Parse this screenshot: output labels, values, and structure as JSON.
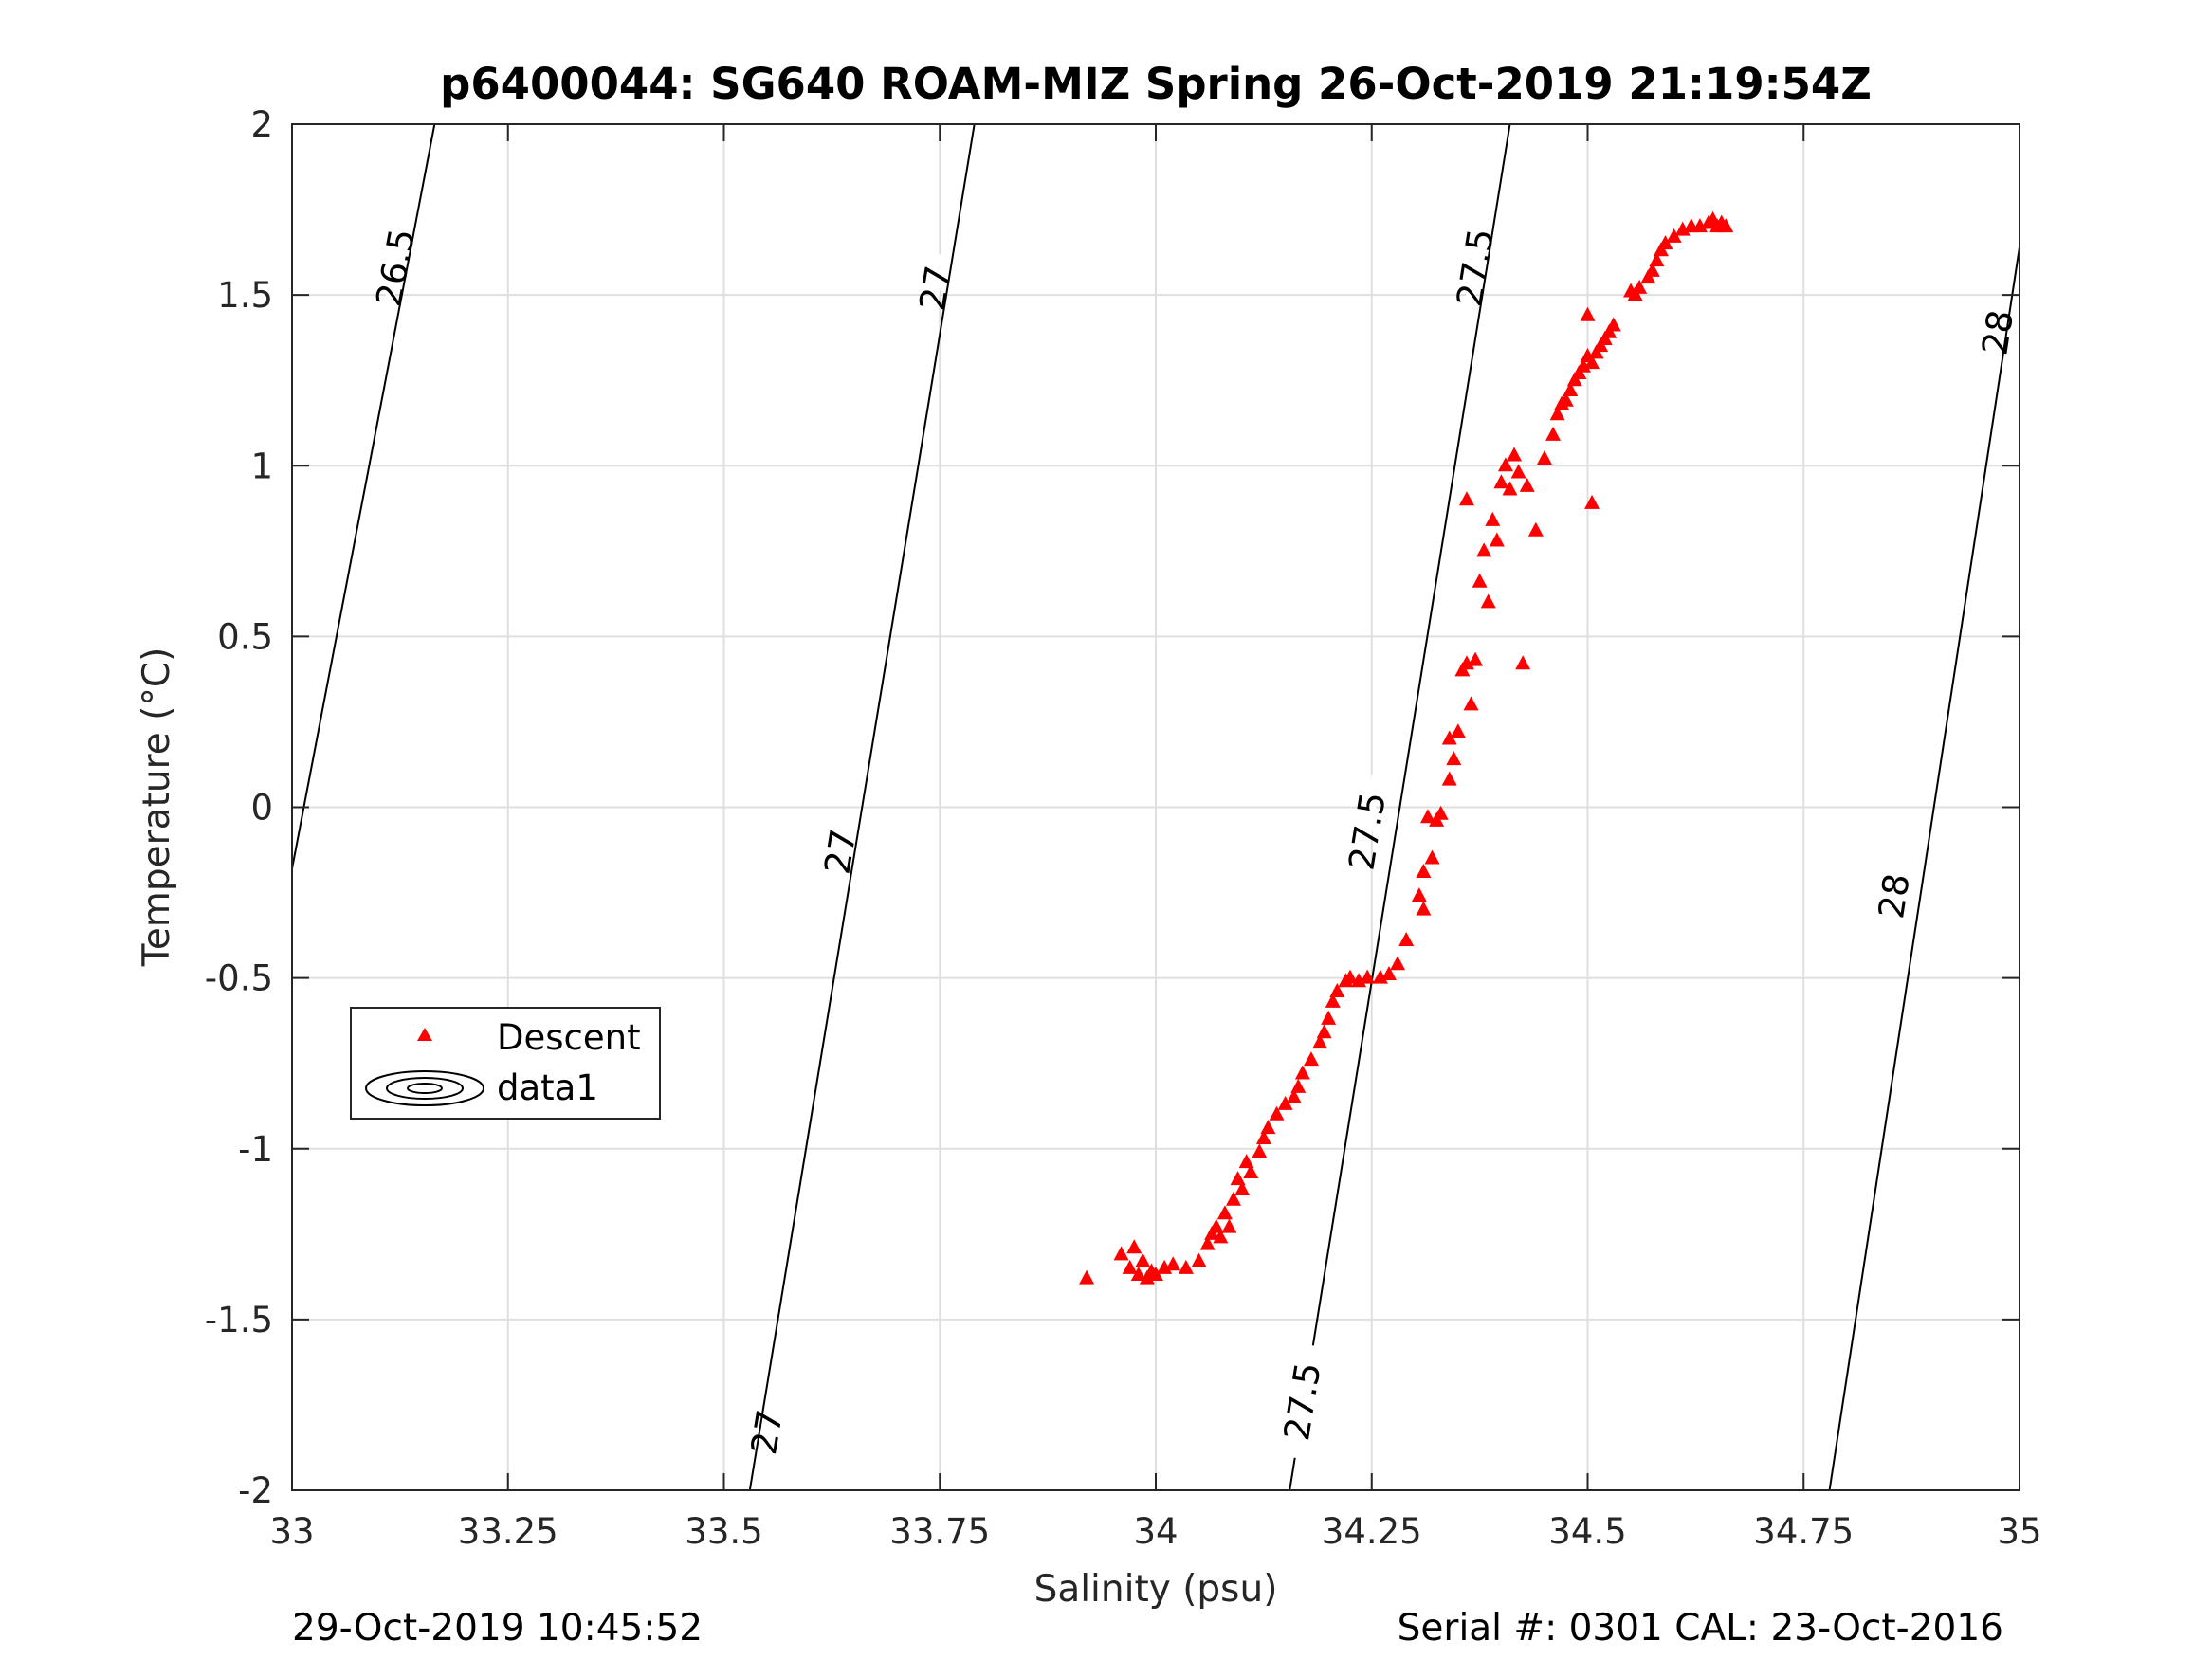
{
  "chart_data": {
    "type": "scatter",
    "title": "p6400044: SG640 ROAM-MIZ Spring 26-Oct-2019 21:19:54Z",
    "xlabel": "Salinity (psu)",
    "ylabel": "Temperature (°C)",
    "xlim": [
      33,
      35
    ],
    "ylim": [
      -2,
      2
    ],
    "xticks": [
      33,
      33.25,
      33.5,
      33.75,
      34,
      34.25,
      34.5,
      34.75,
      35
    ],
    "xtick_labels": [
      "33",
      "33.25",
      "33.5",
      "33.75",
      "34",
      "34.25",
      "34.5",
      "34.75",
      "35"
    ],
    "yticks": [
      -2,
      -1.5,
      -1,
      -0.5,
      0,
      0.5,
      1,
      1.5,
      2
    ],
    "ytick_labels": [
      "-2",
      "-1.5",
      "-1",
      "-0.5",
      "0",
      "0.5",
      "1",
      "1.5",
      "2"
    ],
    "grid": true,
    "legend_position": "middle-left",
    "footer_left": "29-Oct-2019 10:45:52",
    "footer_right": "Serial #: 0301  CAL: 23-Oct-2016",
    "colors": {
      "descent": "#ff0000",
      "contour": "#000000",
      "grid": "#dfdfdf"
    },
    "series": [
      {
        "name": "Descent",
        "marker": "triangle",
        "x": [
          33.92,
          33.96,
          33.97,
          33.975,
          33.98,
          33.985,
          33.99,
          33.995,
          34.0,
          34.01,
          34.02,
          34.035,
          34.05,
          34.06,
          34.07,
          34.065,
          34.075,
          34.08,
          34.085,
          34.09,
          34.1,
          34.095,
          34.11,
          34.105,
          34.12,
          34.125,
          34.13,
          34.14,
          34.15,
          34.16,
          34.165,
          34.17,
          34.18,
          34.19,
          34.195,
          34.2,
          34.205,
          34.21,
          34.22,
          34.225,
          34.235,
          34.245,
          34.26,
          34.27,
          34.28,
          34.29,
          34.31,
          34.305,
          34.32,
          34.31,
          34.325,
          34.33,
          34.315,
          34.34,
          34.345,
          34.34,
          34.35,
          34.355,
          34.36,
          34.365,
          34.37,
          34.36,
          34.385,
          34.375,
          34.38,
          34.395,
          34.39,
          34.4,
          34.405,
          34.41,
          34.415,
          34.42,
          34.425,
          34.43,
          34.44,
          34.45,
          34.46,
          34.465,
          34.47,
          34.475,
          34.48,
          34.485,
          34.49,
          34.495,
          34.5,
          34.505,
          34.51,
          34.515,
          34.52,
          34.525,
          34.53,
          34.5,
          34.505,
          34.55,
          34.555,
          34.56,
          34.57,
          34.575,
          34.58,
          34.585,
          34.59,
          34.6,
          34.61,
          34.62,
          34.63,
          34.64,
          34.645,
          34.65,
          34.655,
          34.66
        ],
        "y": [
          -1.38,
          -1.31,
          -1.35,
          -1.29,
          -1.37,
          -1.33,
          -1.38,
          -1.36,
          -1.37,
          -1.35,
          -1.34,
          -1.35,
          -1.33,
          -1.28,
          -1.23,
          -1.25,
          -1.26,
          -1.19,
          -1.23,
          -1.15,
          -1.12,
          -1.09,
          -1.07,
          -1.04,
          -1.01,
          -0.97,
          -0.94,
          -0.9,
          -0.87,
          -0.85,
          -0.82,
          -0.78,
          -0.74,
          -0.69,
          -0.66,
          -0.62,
          -0.57,
          -0.54,
          -0.51,
          -0.5,
          -0.51,
          -0.5,
          -0.5,
          -0.49,
          -0.46,
          -0.39,
          -0.3,
          -0.26,
          -0.15,
          -0.19,
          -0.04,
          -0.02,
          -0.03,
          0.08,
          0.14,
          0.2,
          0.22,
          0.4,
          0.42,
          0.3,
          0.43,
          0.9,
          0.6,
          0.66,
          0.75,
          0.78,
          0.84,
          0.95,
          1.0,
          0.93,
          1.03,
          0.98,
          0.42,
          0.94,
          0.81,
          1.02,
          1.09,
          1.15,
          1.18,
          1.19,
          1.22,
          1.25,
          1.27,
          1.29,
          1.32,
          1.3,
          1.33,
          1.35,
          1.37,
          1.39,
          1.41,
          1.44,
          0.89,
          1.51,
          1.5,
          1.52,
          1.55,
          1.57,
          1.6,
          1.63,
          1.65,
          1.67,
          1.69,
          1.7,
          1.7,
          1.71,
          1.72,
          1.7,
          1.71,
          1.7
        ]
      },
      {
        "name": "data1",
        "marker": "contour",
        "levels": [
          26.5,
          27,
          27.5,
          28
        ],
        "level_labels": [
          "26.5",
          "27",
          "27.5",
          "28"
        ],
        "lines": [
          {
            "level": 26.5,
            "x": [
              33.0,
              33.165
            ],
            "y": [
              -0.18,
              2.0
            ]
          },
          {
            "level": 27,
            "x": [
              33.53,
              33.79
            ],
            "y": [
              -2.0,
              2.0
            ]
          },
          {
            "level": 27.5,
            "x": [
              34.155,
              34.41
            ],
            "y": [
              -2.0,
              2.0
            ]
          },
          {
            "level": 28,
            "x": [
              34.78,
              35.0
            ],
            "y": [
              -2.0,
              1.64
            ]
          }
        ],
        "labels": [
          {
            "text": "26.5",
            "x": 33.12,
            "y": 1.58
          },
          {
            "text": "27",
            "x": 33.745,
            "y": 1.52
          },
          {
            "text": "27",
            "x": 33.635,
            "y": -0.13
          },
          {
            "text": "27",
            "x": 33.55,
            "y": -1.83
          },
          {
            "text": "27.5",
            "x": 34.37,
            "y": 1.58
          },
          {
            "text": "27.5",
            "x": 34.245,
            "y": -0.07
          },
          {
            "text": "27.5",
            "x": 34.17,
            "y": -1.74
          },
          {
            "text": "28",
            "x": 34.975,
            "y": 1.39
          },
          {
            "text": "28",
            "x": 34.855,
            "y": -0.26
          }
        ]
      }
    ]
  }
}
